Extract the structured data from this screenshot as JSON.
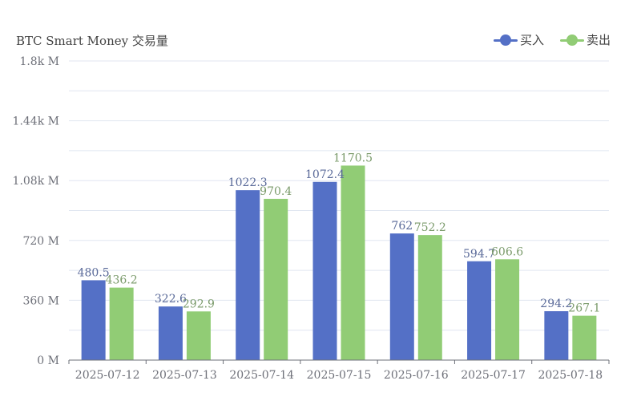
{
  "colors": {
    "buy": "#5470c6",
    "sell": "#91cc75",
    "axis": "#6e7079",
    "grid": "#e0e6f1"
  },
  "chart_data": {
    "type": "bar",
    "title": "BTC Smart Money 交易量",
    "categories": [
      "2025-07-12",
      "2025-07-13",
      "2025-07-14",
      "2025-07-15",
      "2025-07-16",
      "2025-07-17",
      "2025-07-18"
    ],
    "series": [
      {
        "name": "买入",
        "values": [
          480.5,
          322.6,
          1022.3,
          1072.4,
          762,
          594.7,
          294.2
        ],
        "labels": [
          "480.5",
          "322.6",
          "1022.3",
          "1072.4",
          "762",
          "594.7",
          "294.2"
        ]
      },
      {
        "name": "卖出",
        "values": [
          436.2,
          292.9,
          970.4,
          1170.5,
          752.2,
          606.6,
          267.1
        ],
        "labels": [
          "436.2",
          "292.9",
          "970.4",
          "1170.5",
          "752.2",
          "606.6",
          "267.1"
        ]
      }
    ],
    "ylim": [
      0,
      1800
    ],
    "yticks": [
      0,
      360,
      720,
      1080,
      1440,
      1800
    ],
    "ytick_labels": [
      "0 M",
      "360 M",
      "720 M",
      "1.08k M",
      "1.44k M",
      "1.8k M"
    ],
    "grid": true,
    "legend": "top-right"
  }
}
